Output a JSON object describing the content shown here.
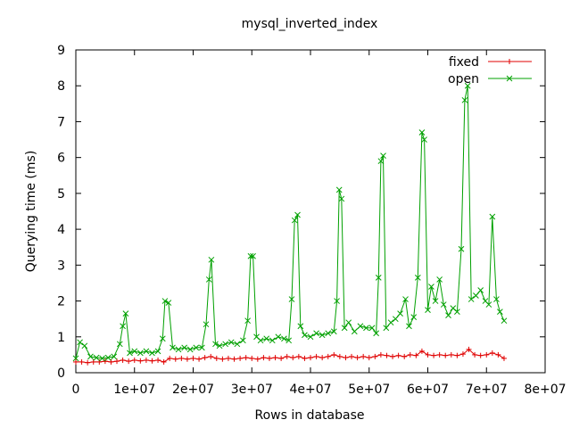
{
  "chart_data": {
    "type": "line",
    "title": "mysql_inverted_index",
    "xlabel": "Rows in database",
    "ylabel": "Querying time (ms)",
    "xlim": [
      0,
      80000000
    ],
    "ylim": [
      0,
      9
    ],
    "x_ticks": [
      0,
      10000000,
      20000000,
      30000000,
      40000000,
      50000000,
      60000000,
      70000000,
      80000000
    ],
    "x_tick_labels": [
      "0",
      "1e+07",
      "2e+07",
      "3e+07",
      "4e+07",
      "5e+07",
      "6e+07",
      "7e+07",
      "8e+07"
    ],
    "y_ticks": [
      0,
      1,
      2,
      3,
      4,
      5,
      6,
      7,
      8,
      9
    ],
    "y_tick_labels": [
      "0",
      "1",
      "2",
      "3",
      "4",
      "5",
      "6",
      "7",
      "8",
      "9"
    ],
    "grid": false,
    "legend": "top-right",
    "series": [
      {
        "name": "fixed",
        "color": "#e00000",
        "marker": "plus",
        "points": [
          [
            0,
            0.3
          ],
          [
            1000000,
            0.3
          ],
          [
            2000000,
            0.28
          ],
          [
            3000000,
            0.3
          ],
          [
            4000000,
            0.3
          ],
          [
            5000000,
            0.32
          ],
          [
            6000000,
            0.3
          ],
          [
            7000000,
            0.32
          ],
          [
            8000000,
            0.35
          ],
          [
            9000000,
            0.32
          ],
          [
            10000000,
            0.35
          ],
          [
            11000000,
            0.33
          ],
          [
            12000000,
            0.35
          ],
          [
            13000000,
            0.33
          ],
          [
            14000000,
            0.35
          ],
          [
            15000000,
            0.3
          ],
          [
            16000000,
            0.4
          ],
          [
            17000000,
            0.38
          ],
          [
            18000000,
            0.4
          ],
          [
            19000000,
            0.38
          ],
          [
            20000000,
            0.4
          ],
          [
            21000000,
            0.38
          ],
          [
            22000000,
            0.42
          ],
          [
            23000000,
            0.45
          ],
          [
            24000000,
            0.4
          ],
          [
            25000000,
            0.38
          ],
          [
            26000000,
            0.4
          ],
          [
            27000000,
            0.38
          ],
          [
            28000000,
            0.4
          ],
          [
            29000000,
            0.42
          ],
          [
            30000000,
            0.4
          ],
          [
            31000000,
            0.38
          ],
          [
            32000000,
            0.42
          ],
          [
            33000000,
            0.4
          ],
          [
            34000000,
            0.42
          ],
          [
            35000000,
            0.4
          ],
          [
            36000000,
            0.45
          ],
          [
            37000000,
            0.42
          ],
          [
            38000000,
            0.45
          ],
          [
            39000000,
            0.4
          ],
          [
            40000000,
            0.42
          ],
          [
            41000000,
            0.45
          ],
          [
            42000000,
            0.42
          ],
          [
            43000000,
            0.45
          ],
          [
            44000000,
            0.5
          ],
          [
            45000000,
            0.45
          ],
          [
            46000000,
            0.42
          ],
          [
            47000000,
            0.45
          ],
          [
            48000000,
            0.42
          ],
          [
            49000000,
            0.45
          ],
          [
            50000000,
            0.42
          ],
          [
            51000000,
            0.45
          ],
          [
            52000000,
            0.5
          ],
          [
            53000000,
            0.48
          ],
          [
            54000000,
            0.45
          ],
          [
            55000000,
            0.48
          ],
          [
            56000000,
            0.45
          ],
          [
            57000000,
            0.5
          ],
          [
            58000000,
            0.48
          ],
          [
            59000000,
            0.6
          ],
          [
            60000000,
            0.5
          ],
          [
            61000000,
            0.48
          ],
          [
            62000000,
            0.5
          ],
          [
            63000000,
            0.48
          ],
          [
            64000000,
            0.5
          ],
          [
            65000000,
            0.48
          ],
          [
            66000000,
            0.52
          ],
          [
            67000000,
            0.65
          ],
          [
            68000000,
            0.5
          ],
          [
            69000000,
            0.48
          ],
          [
            70000000,
            0.5
          ],
          [
            71000000,
            0.55
          ],
          [
            72000000,
            0.5
          ],
          [
            73000000,
            0.4
          ]
        ]
      },
      {
        "name": "open",
        "color": "#00a000",
        "marker": "cross",
        "points": [
          [
            0,
            0.4
          ],
          [
            700000,
            0.85
          ],
          [
            1500000,
            0.75
          ],
          [
            2500000,
            0.45
          ],
          [
            3500000,
            0.42
          ],
          [
            4500000,
            0.4
          ],
          [
            5500000,
            0.42
          ],
          [
            6500000,
            0.45
          ],
          [
            7500000,
            0.8
          ],
          [
            8000000,
            1.3
          ],
          [
            8500000,
            1.65
          ],
          [
            9200000,
            0.55
          ],
          [
            10000000,
            0.6
          ],
          [
            11000000,
            0.55
          ],
          [
            12000000,
            0.6
          ],
          [
            13000000,
            0.55
          ],
          [
            14000000,
            0.6
          ],
          [
            14800000,
            0.95
          ],
          [
            15200000,
            2.0
          ],
          [
            15800000,
            1.95
          ],
          [
            16500000,
            0.7
          ],
          [
            17500000,
            0.65
          ],
          [
            18500000,
            0.7
          ],
          [
            19500000,
            0.65
          ],
          [
            20500000,
            0.7
          ],
          [
            21500000,
            0.7
          ],
          [
            22200000,
            1.35
          ],
          [
            22700000,
            2.6
          ],
          [
            23100000,
            3.15
          ],
          [
            23800000,
            0.8
          ],
          [
            24500000,
            0.75
          ],
          [
            25500000,
            0.8
          ],
          [
            26500000,
            0.85
          ],
          [
            27500000,
            0.8
          ],
          [
            28500000,
            0.9
          ],
          [
            29300000,
            1.45
          ],
          [
            29800000,
            3.25
          ],
          [
            30200000,
            3.25
          ],
          [
            30800000,
            1.0
          ],
          [
            31500000,
            0.9
          ],
          [
            32500000,
            0.95
          ],
          [
            33500000,
            0.9
          ],
          [
            34500000,
            1.0
          ],
          [
            35500000,
            0.95
          ],
          [
            36300000,
            0.9
          ],
          [
            36800000,
            2.05
          ],
          [
            37300000,
            4.25
          ],
          [
            37800000,
            4.4
          ],
          [
            38300000,
            1.3
          ],
          [
            39000000,
            1.05
          ],
          [
            40000000,
            1.0
          ],
          [
            41000000,
            1.1
          ],
          [
            42000000,
            1.05
          ],
          [
            43000000,
            1.1
          ],
          [
            44000000,
            1.15
          ],
          [
            44500000,
            2.0
          ],
          [
            44900000,
            5.1
          ],
          [
            45300000,
            4.85
          ],
          [
            45800000,
            1.25
          ],
          [
            46500000,
            1.4
          ],
          [
            47500000,
            1.15
          ],
          [
            48500000,
            1.3
          ],
          [
            49500000,
            1.25
          ],
          [
            50500000,
            1.25
          ],
          [
            51200000,
            1.1
          ],
          [
            51600000,
            2.65
          ],
          [
            52000000,
            5.9
          ],
          [
            52400000,
            6.05
          ],
          [
            52900000,
            1.25
          ],
          [
            53700000,
            1.4
          ],
          [
            54500000,
            1.5
          ],
          [
            55300000,
            1.65
          ],
          [
            56200000,
            2.05
          ],
          [
            56800000,
            1.3
          ],
          [
            57600000,
            1.55
          ],
          [
            58300000,
            2.65
          ],
          [
            59000000,
            6.7
          ],
          [
            59400000,
            6.5
          ],
          [
            60000000,
            1.75
          ],
          [
            60600000,
            2.4
          ],
          [
            61300000,
            2.0
          ],
          [
            62000000,
            2.6
          ],
          [
            62700000,
            1.9
          ],
          [
            63500000,
            1.6
          ],
          [
            64300000,
            1.8
          ],
          [
            65000000,
            1.7
          ],
          [
            65700000,
            3.45
          ],
          [
            66300000,
            7.6
          ],
          [
            66800000,
            8.0
          ],
          [
            67400000,
            2.05
          ],
          [
            68200000,
            2.15
          ],
          [
            69000000,
            2.3
          ],
          [
            69800000,
            2.0
          ],
          [
            70400000,
            1.9
          ],
          [
            71000000,
            4.35
          ],
          [
            71700000,
            2.05
          ],
          [
            72300000,
            1.7
          ],
          [
            73000000,
            1.45
          ]
        ]
      }
    ]
  }
}
